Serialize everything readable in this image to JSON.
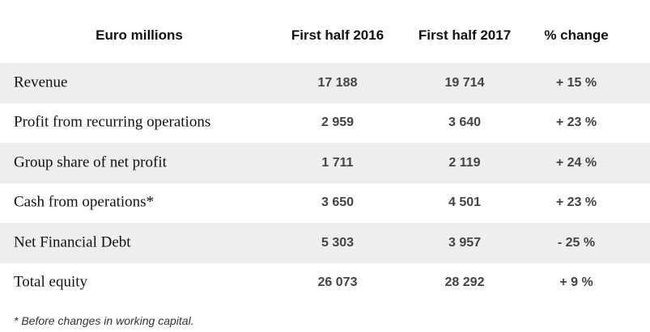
{
  "header": {
    "label_col": "Euro millions",
    "col1": "First half 2016",
    "col2": "First half 2017",
    "col3": "% change"
  },
  "rows": [
    {
      "label": "Revenue",
      "h1_2016": "17 188",
      "h1_2017": "19 714",
      "change": "+ 15 %"
    },
    {
      "label": "Profit from recurring operations",
      "h1_2016": "2 959",
      "h1_2017": "3 640",
      "change": "+ 23 %"
    },
    {
      "label": "Group share of net profit",
      "h1_2016": "1 711",
      "h1_2017": "2 119",
      "change": "+ 24 %"
    },
    {
      "label": "Cash from operations*",
      "h1_2016": "3 650",
      "h1_2017": "4 501",
      "change": "+ 23 %"
    },
    {
      "label": "Net Financial Debt",
      "h1_2016": "5 303",
      "h1_2017": "3 957",
      "change": "- 25 %"
    },
    {
      "label": "Total equity",
      "h1_2016": "26 073",
      "h1_2017": "28 292",
      "change": "+ 9 %"
    }
  ],
  "footnote": "* Before changes in working capital."
}
